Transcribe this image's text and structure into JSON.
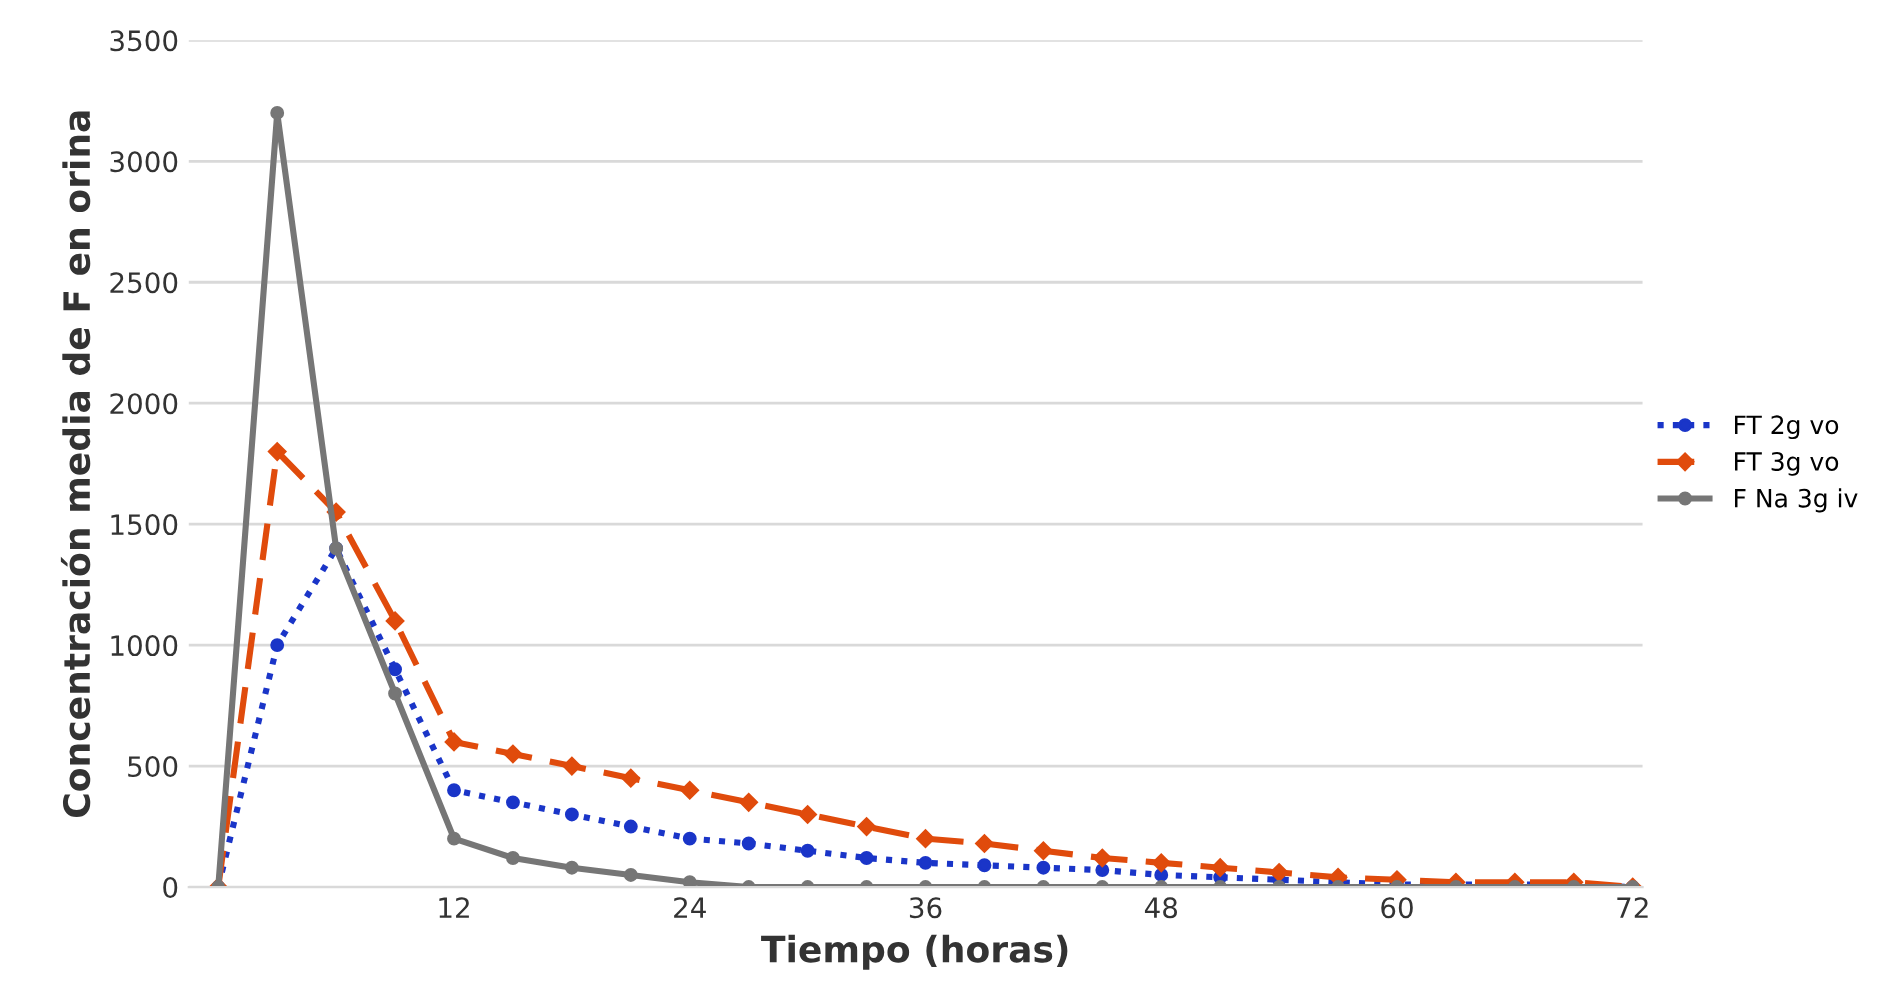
{
  "chart_data": {
    "type": "line",
    "xlabel": "Tiempo (horas)",
    "ylabel": "Concentración media de F en orina",
    "x": [
      0,
      3,
      6,
      9,
      12,
      15,
      18,
      21,
      24,
      27,
      30,
      33,
      36,
      39,
      42,
      45,
      48,
      51,
      54,
      57,
      60,
      63,
      66,
      69,
      72
    ],
    "xlim": [
      -1.5,
      72.5
    ],
    "xticks": [
      12,
      24,
      36,
      48,
      60,
      72
    ],
    "ylim": [
      0,
      3500
    ],
    "yticks": [
      0,
      500,
      1000,
      1500,
      2000,
      2500,
      3000,
      3500
    ],
    "grid": "y",
    "legend": "right",
    "series": [
      {
        "name": "FT 2g vo",
        "color": "#1a35c8",
        "marker": "circle",
        "line_style": "dotted",
        "values": [
          0,
          1000,
          1400,
          900,
          400,
          350,
          300,
          250,
          200,
          180,
          150,
          120,
          100,
          90,
          80,
          70,
          50,
          40,
          30,
          20,
          10,
          10,
          10,
          10,
          0
        ]
      },
      {
        "name": "FT 3g vo",
        "color": "#e04b0c",
        "marker": "diamond",
        "line_style": "dashed",
        "values": [
          0,
          1800,
          1550,
          1100,
          600,
          550,
          500,
          450,
          400,
          350,
          300,
          250,
          200,
          180,
          150,
          120,
          100,
          80,
          60,
          40,
          30,
          20,
          20,
          20,
          0
        ]
      },
      {
        "name": "F Na 3g iv",
        "color": "#767676",
        "marker": "circle",
        "line_style": "solid",
        "values": [
          0,
          3200,
          1400,
          800,
          200,
          120,
          80,
          50,
          20,
          0,
          0,
          0,
          0,
          0,
          0,
          0,
          0,
          0,
          0,
          0,
          0,
          0,
          0,
          0,
          0
        ]
      }
    ]
  }
}
